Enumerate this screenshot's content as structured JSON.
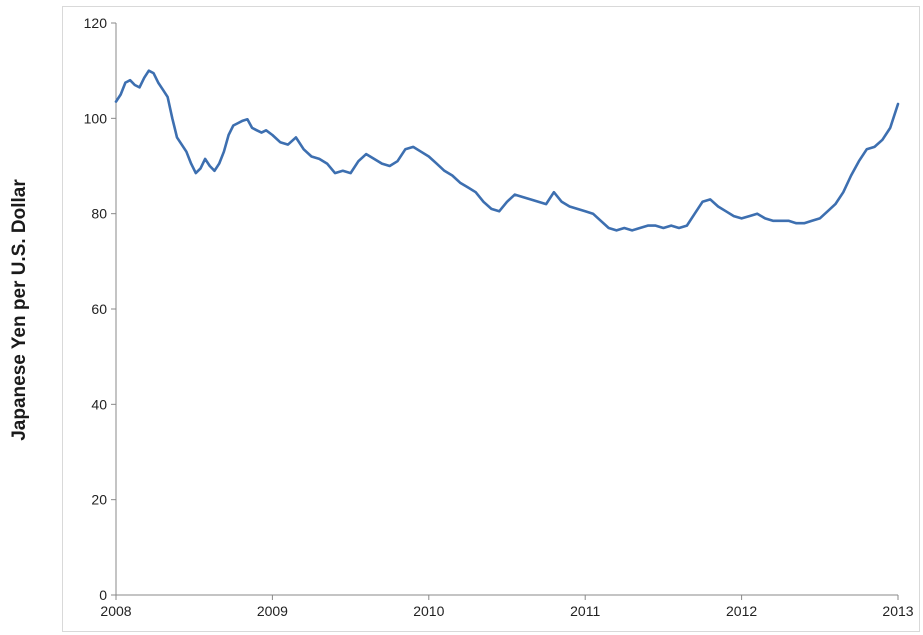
{
  "chart_data": {
    "type": "line",
    "title": "",
    "xlabel": "",
    "ylabel": "Japanese Yen  per U.S. Dollar",
    "xlim": [
      2008,
      2013
    ],
    "ylim": [
      0,
      120
    ],
    "x_ticks": [
      "2008",
      "2009",
      "2010",
      "2011",
      "2012",
      "2013"
    ],
    "y_ticks": [
      "0",
      "20",
      "40",
      "60",
      "80",
      "100",
      "120"
    ],
    "grid": false,
    "legend": "none",
    "series": [
      {
        "color": "#3d6fb0",
        "x": [
          2008.0,
          2008.03,
          2008.06,
          2008.09,
          2008.12,
          2008.15,
          2008.18,
          2008.21,
          2008.24,
          2008.27,
          2008.3,
          2008.33,
          2008.36,
          2008.39,
          2008.42,
          2008.45,
          2008.48,
          2008.51,
          2008.54,
          2008.57,
          2008.6,
          2008.63,
          2008.66,
          2008.69,
          2008.72,
          2008.75,
          2008.78,
          2008.81,
          2008.84,
          2008.87,
          2008.9,
          2008.93,
          2008.96,
          2009.0,
          2009.05,
          2009.1,
          2009.15,
          2009.2,
          2009.25,
          2009.3,
          2009.35,
          2009.4,
          2009.45,
          2009.5,
          2009.55,
          2009.6,
          2009.65,
          2009.7,
          2009.75,
          2009.8,
          2009.85,
          2009.9,
          2009.95,
          2010.0,
          2010.05,
          2010.1,
          2010.15,
          2010.2,
          2010.25,
          2010.3,
          2010.35,
          2010.4,
          2010.45,
          2010.5,
          2010.55,
          2010.6,
          2010.65,
          2010.7,
          2010.75,
          2010.8,
          2010.85,
          2010.9,
          2010.95,
          2011.0,
          2011.05,
          2011.1,
          2011.15,
          2011.2,
          2011.25,
          2011.3,
          2011.35,
          2011.4,
          2011.45,
          2011.5,
          2011.55,
          2011.6,
          2011.65,
          2011.7,
          2011.75,
          2011.8,
          2011.85,
          2011.9,
          2011.95,
          2012.0,
          2012.05,
          2012.1,
          2012.15,
          2012.2,
          2012.25,
          2012.3,
          2012.35,
          2012.4,
          2012.45,
          2012.5,
          2012.55,
          2012.6,
          2012.65,
          2012.7,
          2012.75,
          2012.8,
          2012.85,
          2012.9,
          2012.95,
          2013.0
        ],
        "values": [
          103.5,
          105.0,
          107.5,
          108.0,
          107.0,
          106.5,
          108.5,
          110.0,
          109.5,
          107.5,
          106.0,
          104.5,
          100.0,
          96.0,
          94.5,
          93.0,
          90.5,
          88.5,
          89.5,
          91.5,
          90.0,
          89.0,
          90.5,
          93.0,
          96.5,
          98.5,
          99.0,
          99.5,
          99.8,
          98.0,
          97.5,
          97.0,
          97.5,
          96.5,
          95.0,
          94.5,
          96.0,
          93.5,
          92.0,
          91.5,
          90.5,
          88.5,
          89.0,
          88.5,
          91.0,
          92.5,
          91.5,
          90.5,
          90.0,
          91.0,
          93.5,
          94.0,
          93.0,
          92.0,
          90.5,
          89.0,
          88.0,
          86.5,
          85.5,
          84.5,
          82.5,
          81.0,
          80.5,
          82.5,
          84.0,
          83.5,
          83.0,
          82.5,
          82.0,
          84.5,
          82.5,
          81.5,
          81.0,
          80.5,
          80.0,
          78.5,
          77.0,
          76.5,
          77.0,
          76.5,
          77.0,
          77.5,
          77.5,
          77.0,
          77.5,
          77.0,
          77.5,
          80.0,
          82.5,
          83.0,
          81.5,
          80.5,
          79.5,
          79.0,
          79.5,
          80.0,
          79.0,
          78.5,
          78.5,
          78.5,
          78.0,
          78.0,
          78.5,
          79.0,
          80.5,
          82.0,
          84.5,
          88.0,
          91.0,
          93.5,
          94.0,
          95.5,
          98.0,
          103.0
        ]
      }
    ]
  }
}
